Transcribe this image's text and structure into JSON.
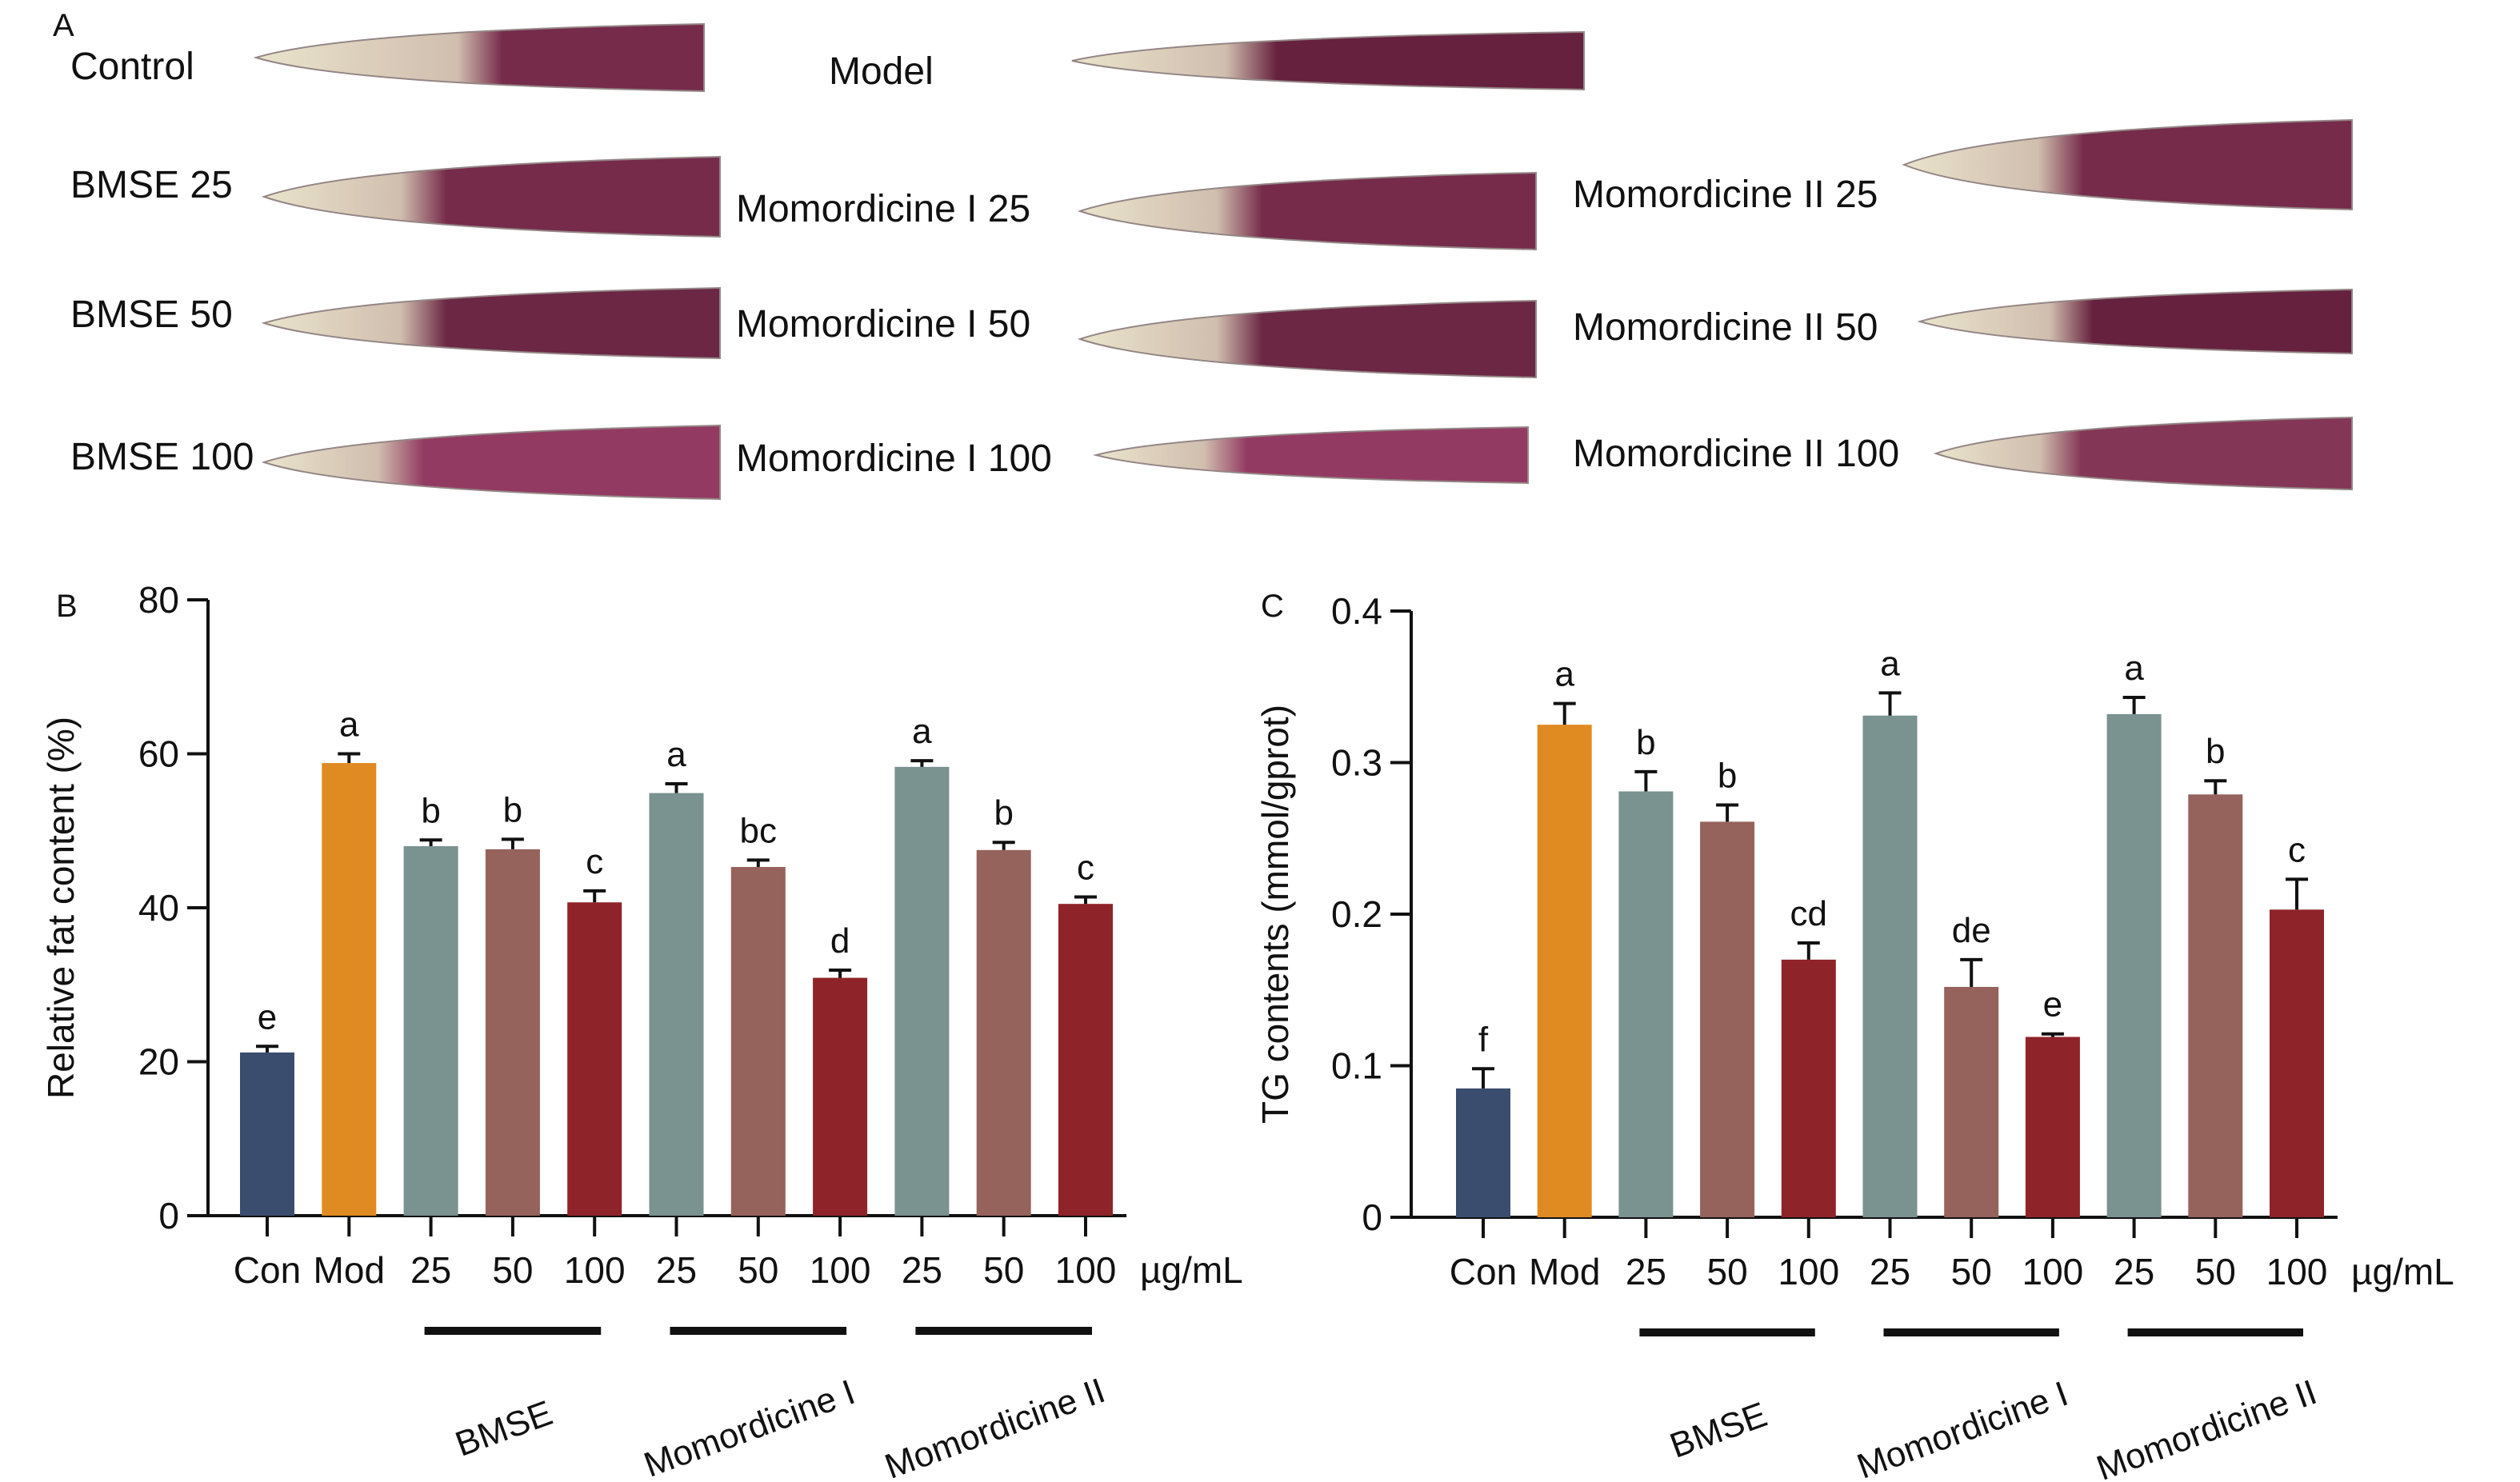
{
  "panel_labels": {
    "a": "A",
    "b": "B",
    "c": "C"
  },
  "panel_a": {
    "images": [
      {
        "label": "Control",
        "stain": "light",
        "color": "#6b1a3c"
      },
      {
        "label": "Model",
        "stain": "heavy",
        "color": "#5a0f2e"
      },
      {
        "label": "BMSE 25",
        "stain": "heavy",
        "color": "#6b1a3c"
      },
      {
        "label": "BMSE 50",
        "stain": "heavy",
        "color": "#5f1535"
      },
      {
        "label": "BMSE 100",
        "stain": "medium",
        "color": "#8a2a55"
      },
      {
        "label": "Momordicine I 25",
        "stain": "heavy",
        "color": "#6b1a3c"
      },
      {
        "label": "Momordicine I 50",
        "stain": "heavy",
        "color": "#5f1535"
      },
      {
        "label": "Momordicine I 100",
        "stain": "medium",
        "color": "#8a2a55"
      },
      {
        "label": "Momordicine II 25",
        "stain": "heavy",
        "color": "#6b1a3c"
      },
      {
        "label": "Momordicine II 50",
        "stain": "heavy",
        "color": "#5a0f2e"
      },
      {
        "label": "Momordicine II 100",
        "stain": "medium",
        "color": "#7a2548"
      }
    ]
  },
  "chart_data": [
    {
      "type": "bar",
      "panel": "B",
      "ylabel": "Relative fat content (%)",
      "ylim": [
        0,
        80
      ],
      "yticks": [
        "0",
        "20",
        "40",
        "60",
        "80"
      ],
      "categories": [
        "Con",
        "Mod",
        "25",
        "50",
        "100",
        "25",
        "50",
        "100",
        "25",
        "50",
        "100"
      ],
      "unit": "µg/mL",
      "values": [
        21.2,
        58.8,
        48.0,
        47.6,
        40.7,
        54.9,
        45.3,
        30.9,
        58.3,
        47.5,
        40.5
      ],
      "errors": [
        0.8,
        1.2,
        0.8,
        1.3,
        1.5,
        1.2,
        0.9,
        1.0,
        0.8,
        1.0,
        0.9
      ],
      "letters": [
        "e",
        "a",
        "b",
        "b",
        "c",
        "a",
        "bc",
        "d",
        "a",
        "b",
        "c"
      ],
      "groups": [
        {
          "name": "BMSE",
          "from": 2,
          "to": 4
        },
        {
          "name": "Momordicine I",
          "from": 5,
          "to": 7
        },
        {
          "name": "Momordicine II",
          "from": 8,
          "to": 10
        }
      ]
    },
    {
      "type": "bar",
      "panel": "C",
      "ylabel": "TG contents (mmol/gprot)",
      "ylim": [
        0,
        0.4
      ],
      "yticks": [
        "0",
        "0.1",
        "0.2",
        "0.3",
        "0.4"
      ],
      "categories": [
        "Con",
        "Mod",
        "25",
        "50",
        "100",
        "25",
        "50",
        "100",
        "25",
        "50",
        "100"
      ],
      "unit": "µg/mL",
      "values": [
        0.085,
        0.325,
        0.281,
        0.261,
        0.17,
        0.331,
        0.152,
        0.119,
        0.332,
        0.279,
        0.203
      ],
      "errors": [
        0.013,
        0.014,
        0.013,
        0.011,
        0.011,
        0.015,
        0.018,
        0.002,
        0.011,
        0.009,
        0.02
      ],
      "letters": [
        "f",
        "a",
        "b",
        "b",
        "cd",
        "a",
        "de",
        "e",
        "a",
        "b",
        "c"
      ],
      "groups": [
        {
          "name": "BMSE",
          "from": 2,
          "to": 4
        },
        {
          "name": "Momordicine I",
          "from": 5,
          "to": 7
        },
        {
          "name": "Momordicine II",
          "from": 8,
          "to": 10
        }
      ]
    }
  ],
  "colors": {
    "con": "#3b4d6e",
    "mod": "#e08b22",
    "dose25": "#7a9290",
    "dose50": "#96625c",
    "dose100": "#8e2329",
    "axis": "#111111"
  }
}
